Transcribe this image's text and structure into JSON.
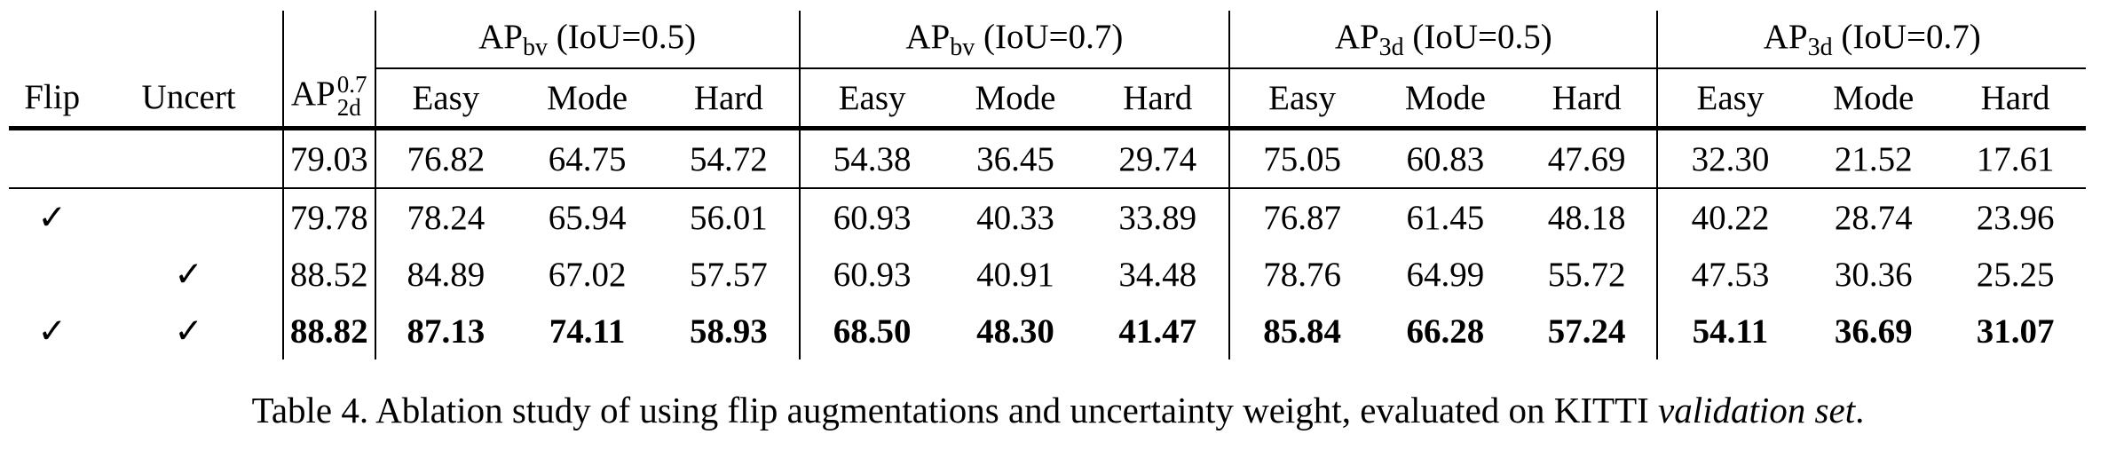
{
  "table": {
    "group_headers": [
      {
        "base": "AP",
        "sub": "bv",
        "cond": "(IoU=0.5)"
      },
      {
        "base": "AP",
        "sub": "bv",
        "cond": "(IoU=0.7)"
      },
      {
        "base": "AP",
        "sub": "3d",
        "cond": "(IoU=0.5)"
      },
      {
        "base": "AP",
        "sub": "3d",
        "cond": "(IoU=0.7)"
      }
    ],
    "col_flip": "Flip",
    "col_uncert": "Uncert",
    "col_ap2d": {
      "base": "AP",
      "sup": "0.7",
      "sub": "2d"
    },
    "difficulty": [
      "Easy",
      "Mode",
      "Hard"
    ],
    "rows": [
      {
        "flip": "",
        "uncert": "",
        "values": [
          "79.03",
          "76.82",
          "64.75",
          "54.72",
          "54.38",
          "36.45",
          "29.74",
          "75.05",
          "60.83",
          "47.69",
          "32.30",
          "21.52",
          "17.61"
        ],
        "bold": false
      },
      {
        "flip": "✓",
        "uncert": "",
        "values": [
          "79.78",
          "78.24",
          "65.94",
          "56.01",
          "60.93",
          "40.33",
          "33.89",
          "76.87",
          "61.45",
          "48.18",
          "40.22",
          "28.74",
          "23.96"
        ],
        "bold": false
      },
      {
        "flip": "",
        "uncert": "✓",
        "values": [
          "88.52",
          "84.89",
          "67.02",
          "57.57",
          "60.93",
          "40.91",
          "34.48",
          "78.76",
          "64.99",
          "55.72",
          "47.53",
          "30.36",
          "25.25"
        ],
        "bold": false
      },
      {
        "flip": "✓",
        "uncert": "✓",
        "values": [
          "88.82",
          "87.13",
          "74.11",
          "58.93",
          "68.50",
          "48.30",
          "41.47",
          "85.84",
          "66.28",
          "57.24",
          "54.11",
          "36.69",
          "31.07"
        ],
        "bold": true
      }
    ]
  },
  "caption": {
    "text": "Table 4. Ablation study of using flip augmentations and uncertainty weight, evaluated on KITTI",
    "italic": "validation set",
    "end": "."
  }
}
